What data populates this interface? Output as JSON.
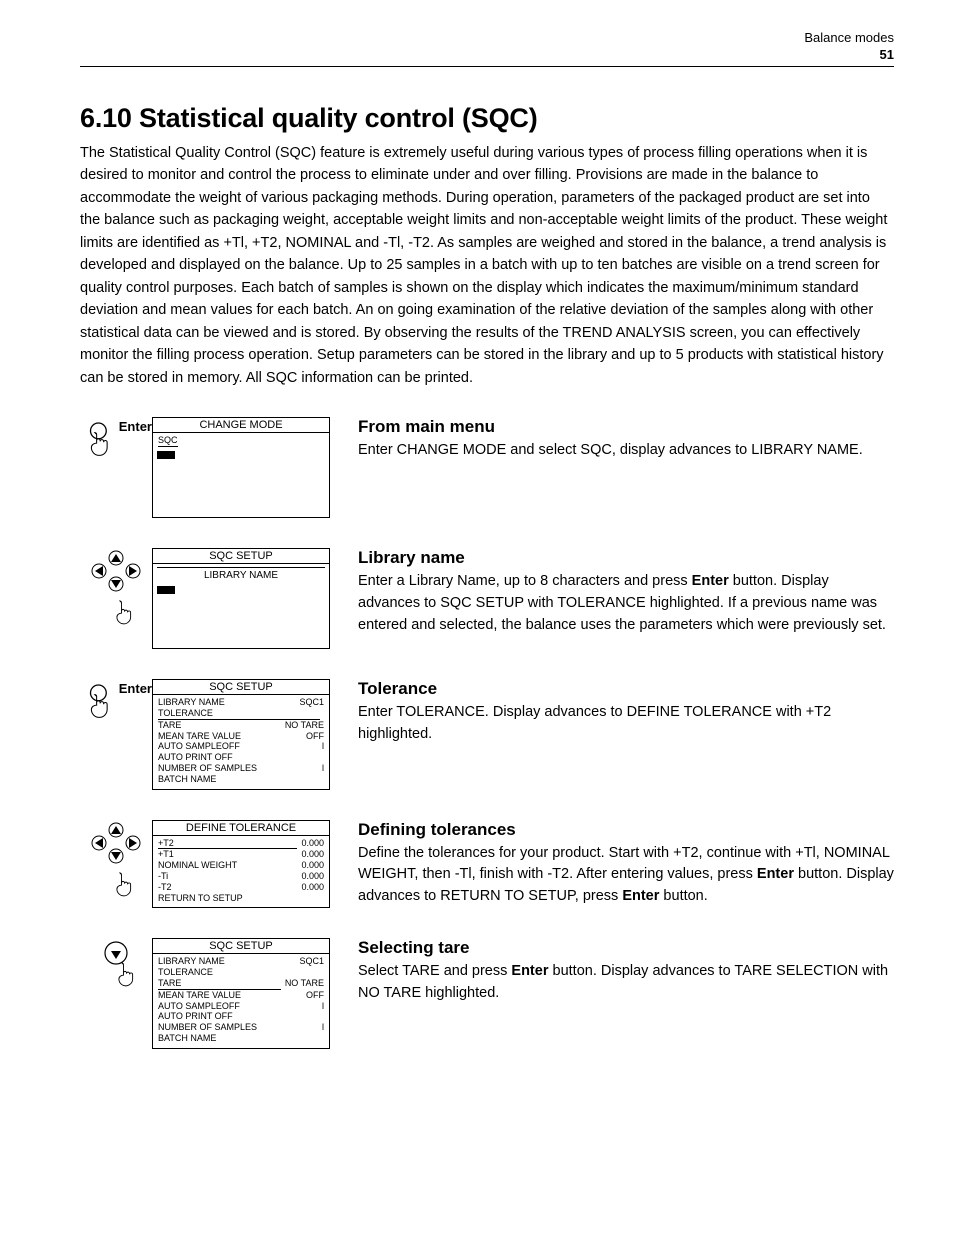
{
  "header": {
    "running": "Balance modes",
    "page": "51"
  },
  "colors": {
    "text": "#000000",
    "background": "#ffffff",
    "rule": "#000000"
  },
  "typography": {
    "body_family": "Arial",
    "body_size_pt": 11,
    "heading_size_pt": 20,
    "heading_weight": "bold",
    "step_heading_size_pt": 13
  },
  "title": "6.10    Statistical quality control (SQC)",
  "intro": "The Statistical Quality Control (SQC) feature is extremely useful during various types of process filling operations when it is desired to monitor and control the process to eliminate under and over filling. Provisions are made in the balance to accommodate the weight of various packaging methods. During operation, parameters of the packaged product are set into the balance such as packaging weight, acceptable weight limits and non-acceptable weight limits of the product. These weight limits are identified as +Tl, +T2, NOMINAL and -Tl, -T2. As samples are weighed and stored in the balance, a trend analysis is developed and displayed on the balance. Up to 25 samples in a batch with up to ten batches are visible on a trend screen for quality control purposes. Each batch of samples is shown on the display which indicates the maximum/minimum standard deviation and mean values for each batch. An on going examination of the relative deviation of the samples along with other statistical data can be viewed and is stored. By observing the results of the TREND ANALYSIS screen, you can effectively monitor the filling process operation. Setup parameters can be stored in the library and up to 5 products with statistical history can be stored in memory. All SQC information can be printed.",
  "steps": [
    {
      "icon_label": "Enter",
      "icon": "hand",
      "screen": {
        "title": "CHANGE MODE",
        "type": "sqc_cursor"
      },
      "heading": "From main menu",
      "body_pre": "Enter CHANGE MODE and select SQC, display advances to LIBRARY NAME.",
      "body_mid": "",
      "body_bold": "",
      "body_post": ""
    },
    {
      "icon_label": "",
      "icon": "dpad",
      "screen": {
        "title": "SQC SETUP",
        "type": "library_name"
      },
      "heading": "Library name",
      "body_pre": "Enter a Library Name, up to 8 characters and press ",
      "body_bold": "Enter",
      "body_mid": " button. Display advances to SQC SETUP with TOLERANCE highlighted. If a previous name was entered and selected, the balance uses the parameters which were previously set.",
      "body_post": ""
    },
    {
      "icon_label": "Enter",
      "icon": "hand",
      "screen": {
        "title": "SQC SETUP",
        "type": "sqc_setup1"
      },
      "heading": "Tolerance",
      "body_pre": "Enter TOLERANCE. Display advances to DEFINE TOLERANCE with +T2 highlighted.",
      "body_mid": "",
      "body_bold": "",
      "body_post": ""
    },
    {
      "icon_label": "",
      "icon": "dpad",
      "screen": {
        "title": "DEFINE TOLERANCE",
        "type": "tolerance"
      },
      "heading": "Defining tolerances",
      "body_pre": "Define the tolerances for your product.  Start with +T2, continue with +Tl, NOMINAL WEIGHT, then -Tl, finish with -T2. After entering values, press ",
      "body_bold": "Enter",
      "body_mid": " button. Display advances to RETURN TO SETUP, press ",
      "body_bold2": "Enter",
      "body_post": " button."
    },
    {
      "icon_label": "",
      "icon": "down",
      "screen": {
        "title": "SQC SETUP",
        "type": "sqc_setup2"
      },
      "heading": "Selecting tare",
      "body_pre": "Select TARE and press ",
      "body_bold": "Enter",
      "body_mid": " button. Display advances to TARE SELECTION with NO TARE highlighted.",
      "body_post": ""
    }
  ],
  "screens": {
    "sqc_cursor": {
      "line1_label": "SQC",
      "line1_underline": true
    },
    "library_name": {
      "center_label": "LIBRARY NAME",
      "cursor": true
    },
    "sqc_setup1": {
      "rows": [
        {
          "l": "LIBRARY NAME",
          "r": "SQC1"
        },
        {
          "l": "TOLERANCE",
          "r": "",
          "hl": true
        },
        {
          "l": "TARE",
          "r": "NO TARE"
        },
        {
          "l": "MEAN TARE VALUE",
          "r": "OFF"
        },
        {
          "l": "AUTO SAMPLEOFF",
          "r": "l"
        },
        {
          "l": "AUTO PRINT   OFF",
          "r": ""
        },
        {
          "l": "NUMBER OF SAMPLES",
          "r": "l"
        },
        {
          "l": "BATCH NAME",
          "r": ""
        }
      ]
    },
    "tolerance": {
      "rows": [
        {
          "l": "+T2",
          "r": "0.000",
          "hl": true
        },
        {
          "l": "+T1",
          "r": "0.000"
        },
        {
          "l": "NOMINAL WEIGHT",
          "r": "0.000"
        },
        {
          "l": "-Ti",
          "r": "0.000"
        },
        {
          "l": "-T2",
          "r": "0.000"
        },
        {
          "l": "RETURN TO SETUP",
          "r": ""
        }
      ]
    },
    "sqc_setup2": {
      "rows": [
        {
          "l": "LIBRARY NAME",
          "r": "SQC1"
        },
        {
          "l": "TOLERANCE",
          "r": ""
        },
        {
          "l": "TARE",
          "r": "NO TARE",
          "hl": true
        },
        {
          "l": "MEAN TARE VALUE",
          "r": "OFF"
        },
        {
          "l": "AUTO SAMPLEOFF",
          "r": "l"
        },
        {
          "l": "AUTO PRINT   OFF",
          "r": ""
        },
        {
          "l": "NUMBER OF SAMPLES",
          "r": "l"
        },
        {
          "l": "BATCH NAME",
          "r": ""
        }
      ]
    }
  }
}
